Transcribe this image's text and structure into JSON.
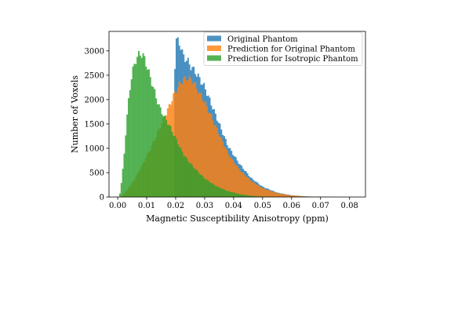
{
  "chart_data": {
    "type": "histogram",
    "title": "",
    "xlabel": "Magnetic Susceptibility Anisotropy (ppm)",
    "ylabel": "Number of Voxels",
    "xlim": [
      -0.003,
      0.0855
    ],
    "ylim": [
      0,
      3400
    ],
    "xticks": [
      0.0,
      0.01,
      0.02,
      0.03,
      0.04,
      0.05,
      0.06,
      0.07,
      0.08
    ],
    "xtick_labels": [
      "0.00",
      "0.01",
      "0.02",
      "0.03",
      "0.04",
      "0.05",
      "0.06",
      "0.07",
      "0.08"
    ],
    "yticks": [
      0,
      500,
      1000,
      1500,
      2000,
      2500,
      3000
    ],
    "ytick_labels": [
      "0",
      "500",
      "1000",
      "1500",
      "2000",
      "2500",
      "3000"
    ],
    "grid": false,
    "legend_position": "upper-right",
    "bin_width": 0.0005,
    "series": [
      {
        "name": "Original Phantom",
        "color": "#1f77b4",
        "alpha": 0.8,
        "points": [
          [
            0.0195,
            0
          ],
          [
            0.0198,
            3250
          ],
          [
            0.0215,
            3150
          ],
          [
            0.0225,
            2900
          ],
          [
            0.024,
            2800
          ],
          [
            0.025,
            2700
          ],
          [
            0.027,
            2550
          ],
          [
            0.03,
            2250
          ],
          [
            0.034,
            1650
          ],
          [
            0.038,
            1050
          ],
          [
            0.042,
            680
          ],
          [
            0.046,
            390
          ],
          [
            0.05,
            210
          ],
          [
            0.055,
            90
          ],
          [
            0.06,
            35
          ],
          [
            0.065,
            12
          ],
          [
            0.07,
            4
          ],
          [
            0.075,
            0
          ]
        ]
      },
      {
        "name": "Prediction for Original Phantom",
        "color": "#ff7f0e",
        "alpha": 0.8,
        "points": [
          [
            0.001,
            0
          ],
          [
            0.003,
            120
          ],
          [
            0.006,
            380
          ],
          [
            0.009,
            720
          ],
          [
            0.012,
            1080
          ],
          [
            0.015,
            1480
          ],
          [
            0.018,
            1900
          ],
          [
            0.02,
            2180
          ],
          [
            0.022,
            2380
          ],
          [
            0.024,
            2450
          ],
          [
            0.026,
            2380
          ],
          [
            0.028,
            2150
          ],
          [
            0.03,
            1950
          ],
          [
            0.034,
            1420
          ],
          [
            0.038,
            900
          ],
          [
            0.042,
            560
          ],
          [
            0.046,
            330
          ],
          [
            0.05,
            180
          ],
          [
            0.055,
            80
          ],
          [
            0.06,
            32
          ],
          [
            0.065,
            10
          ],
          [
            0.07,
            3
          ],
          [
            0.075,
            0
          ]
        ]
      },
      {
        "name": "Prediction for Isotropic Phantom",
        "color": "#2ca02c",
        "alpha": 0.8,
        "points": [
          [
            0.0005,
            0
          ],
          [
            0.001,
            150
          ],
          [
            0.002,
            700
          ],
          [
            0.003,
            1500
          ],
          [
            0.004,
            2150
          ],
          [
            0.005,
            2550
          ],
          [
            0.006,
            2780
          ],
          [
            0.007,
            2900
          ],
          [
            0.008,
            2950
          ],
          [
            0.009,
            2880
          ],
          [
            0.01,
            2700
          ],
          [
            0.012,
            2300
          ],
          [
            0.014,
            1900
          ],
          [
            0.016,
            1650
          ],
          [
            0.018,
            1450
          ],
          [
            0.02,
            1200
          ],
          [
            0.022,
            950
          ],
          [
            0.024,
            760
          ],
          [
            0.027,
            560
          ],
          [
            0.03,
            380
          ],
          [
            0.034,
            220
          ],
          [
            0.038,
            120
          ],
          [
            0.042,
            60
          ],
          [
            0.046,
            25
          ],
          [
            0.05,
            8
          ],
          [
            0.055,
            0
          ]
        ]
      }
    ]
  }
}
